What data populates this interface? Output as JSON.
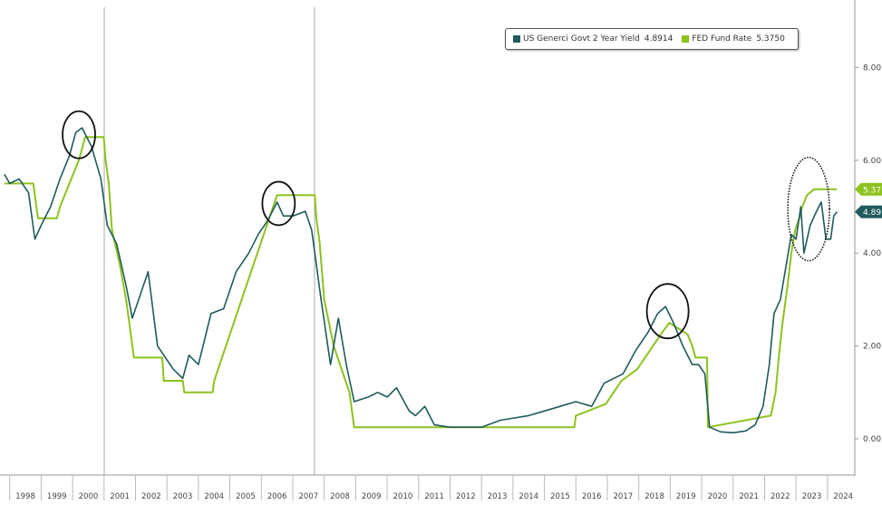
{
  "chart_data": {
    "type": "line",
    "title": "",
    "xlabel": "",
    "ylabel": "",
    "xlim": [
      1997.83,
      2024.6
    ],
    "ylim": [
      -0.4,
      9.4
    ],
    "y_ticks": [
      "0.00",
      "2.00",
      "4.00",
      "6.00",
      "8.00"
    ],
    "x_ticks": [
      "1998",
      "1999",
      "2000",
      "2001",
      "2002",
      "2003",
      "2004",
      "2005",
      "2006",
      "2007",
      "2008",
      "2009",
      "2010",
      "2011",
      "2012",
      "2013",
      "2014",
      "2015",
      "2016",
      "2017",
      "2018",
      "2019",
      "2020",
      "2021",
      "2022",
      "2023",
      "2024"
    ],
    "axis_side": "right",
    "legend_placement": "top-right",
    "series": [
      {
        "name": "US Generci Govt 2 Year Yield",
        "last": "4.8914",
        "tag": "4.89",
        "color": "#1f5a5c",
        "points": [
          [
            1997.83,
            5.7
          ],
          [
            1998.0,
            5.5
          ],
          [
            1998.3,
            5.6
          ],
          [
            1998.6,
            5.3
          ],
          [
            1998.8,
            4.3
          ],
          [
            1999.0,
            4.6
          ],
          [
            1999.3,
            5.0
          ],
          [
            1999.6,
            5.6
          ],
          [
            1999.9,
            6.1
          ],
          [
            2000.1,
            6.6
          ],
          [
            2000.3,
            6.7
          ],
          [
            2000.6,
            6.3
          ],
          [
            2000.9,
            5.6
          ],
          [
            2001.1,
            4.6
          ],
          [
            2001.4,
            4.2
          ],
          [
            2001.7,
            3.3
          ],
          [
            2001.9,
            2.6
          ],
          [
            2002.2,
            3.2
          ],
          [
            2002.4,
            3.6
          ],
          [
            2002.7,
            2.0
          ],
          [
            2002.9,
            1.8
          ],
          [
            2003.2,
            1.5
          ],
          [
            2003.5,
            1.3
          ],
          [
            2003.7,
            1.8
          ],
          [
            2004.0,
            1.6
          ],
          [
            2004.4,
            2.7
          ],
          [
            2004.8,
            2.8
          ],
          [
            2005.2,
            3.6
          ],
          [
            2005.6,
            4.0
          ],
          [
            2005.9,
            4.4
          ],
          [
            2006.2,
            4.7
          ],
          [
            2006.5,
            5.1
          ],
          [
            2006.7,
            4.8
          ],
          [
            2007.0,
            4.8
          ],
          [
            2007.4,
            4.9
          ],
          [
            2007.6,
            4.5
          ],
          [
            2007.9,
            3.0
          ],
          [
            2008.2,
            1.6
          ],
          [
            2008.45,
            2.6
          ],
          [
            2008.7,
            1.6
          ],
          [
            2008.95,
            0.8
          ],
          [
            2009.4,
            0.9
          ],
          [
            2009.7,
            1.0
          ],
          [
            2010.0,
            0.9
          ],
          [
            2010.3,
            1.1
          ],
          [
            2010.7,
            0.6
          ],
          [
            2010.9,
            0.5
          ],
          [
            2011.2,
            0.7
          ],
          [
            2011.5,
            0.3
          ],
          [
            2012.0,
            0.25
          ],
          [
            2013.0,
            0.25
          ],
          [
            2013.6,
            0.4
          ],
          [
            2014.5,
            0.5
          ],
          [
            2015.0,
            0.6
          ],
          [
            2015.5,
            0.7
          ],
          [
            2016.0,
            0.8
          ],
          [
            2016.5,
            0.7
          ],
          [
            2016.9,
            1.2
          ],
          [
            2017.5,
            1.4
          ],
          [
            2017.9,
            1.9
          ],
          [
            2018.3,
            2.3
          ],
          [
            2018.6,
            2.7
          ],
          [
            2018.85,
            2.85
          ],
          [
            2019.1,
            2.5
          ],
          [
            2019.4,
            2.0
          ],
          [
            2019.7,
            1.6
          ],
          [
            2019.9,
            1.6
          ],
          [
            2020.1,
            1.4
          ],
          [
            2020.25,
            0.25
          ],
          [
            2020.6,
            0.15
          ],
          [
            2021.0,
            0.13
          ],
          [
            2021.4,
            0.17
          ],
          [
            2021.7,
            0.3
          ],
          [
            2021.95,
            0.7
          ],
          [
            2022.15,
            1.6
          ],
          [
            2022.3,
            2.7
          ],
          [
            2022.5,
            3.0
          ],
          [
            2022.7,
            3.8
          ],
          [
            2022.85,
            4.4
          ],
          [
            2023.0,
            4.3
          ],
          [
            2023.15,
            5.0
          ],
          [
            2023.25,
            4.0
          ],
          [
            2023.45,
            4.6
          ],
          [
            2023.65,
            4.9
          ],
          [
            2023.8,
            5.1
          ],
          [
            2023.95,
            4.3
          ],
          [
            2024.1,
            4.3
          ],
          [
            2024.2,
            4.8
          ],
          [
            2024.3,
            4.89
          ]
        ]
      },
      {
        "name": "FED Fund Rate",
        "last": "5.3750",
        "tag": "5.37",
        "color": "#8dc21f",
        "points": [
          [
            1997.83,
            5.5
          ],
          [
            1998.75,
            5.5
          ],
          [
            1998.9,
            4.75
          ],
          [
            1999.5,
            4.75
          ],
          [
            1999.6,
            5.0
          ],
          [
            1999.9,
            5.5
          ],
          [
            2000.2,
            6.0
          ],
          [
            2000.4,
            6.5
          ],
          [
            2000.99,
            6.5
          ],
          [
            2001.05,
            6.0
          ],
          [
            2001.15,
            5.5
          ],
          [
            2001.25,
            4.5
          ],
          [
            2001.5,
            3.75
          ],
          [
            2001.7,
            3.0
          ],
          [
            2001.8,
            2.5
          ],
          [
            2001.95,
            1.75
          ],
          [
            2002.85,
            1.75
          ],
          [
            2002.9,
            1.25
          ],
          [
            2003.5,
            1.25
          ],
          [
            2003.55,
            1.0
          ],
          [
            2004.45,
            1.0
          ],
          [
            2004.5,
            1.25
          ],
          [
            2004.75,
            1.75
          ],
          [
            2005.0,
            2.25
          ],
          [
            2005.25,
            2.75
          ],
          [
            2005.5,
            3.25
          ],
          [
            2005.75,
            3.75
          ],
          [
            2006.0,
            4.25
          ],
          [
            2006.25,
            4.75
          ],
          [
            2006.5,
            5.25
          ],
          [
            2007.7,
            5.25
          ],
          [
            2007.75,
            4.75
          ],
          [
            2007.85,
            4.25
          ],
          [
            2008.0,
            3.0
          ],
          [
            2008.3,
            2.0
          ],
          [
            2008.8,
            1.0
          ],
          [
            2008.95,
            0.25
          ],
          [
            2015.95,
            0.25
          ],
          [
            2016.0,
            0.5
          ],
          [
            2016.95,
            0.75
          ],
          [
            2017.2,
            1.0
          ],
          [
            2017.45,
            1.25
          ],
          [
            2017.95,
            1.5
          ],
          [
            2018.2,
            1.75
          ],
          [
            2018.45,
            2.0
          ],
          [
            2018.7,
            2.25
          ],
          [
            2018.97,
            2.5
          ],
          [
            2019.55,
            2.25
          ],
          [
            2019.7,
            2.0
          ],
          [
            2019.8,
            1.75
          ],
          [
            2020.17,
            1.75
          ],
          [
            2020.2,
            0.25
          ],
          [
            2022.2,
            0.5
          ],
          [
            2022.35,
            1.0
          ],
          [
            2022.45,
            1.75
          ],
          [
            2022.57,
            2.5
          ],
          [
            2022.72,
            3.25
          ],
          [
            2022.85,
            4.0
          ],
          [
            2022.97,
            4.5
          ],
          [
            2023.1,
            4.75
          ],
          [
            2023.2,
            5.0
          ],
          [
            2023.35,
            5.25
          ],
          [
            2023.57,
            5.375
          ],
          [
            2024.3,
            5.375
          ]
        ]
      }
    ]
  }
}
